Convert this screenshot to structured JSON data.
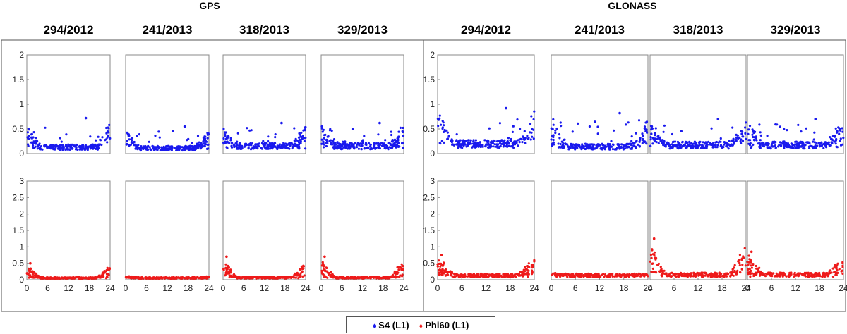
{
  "chart_data": {
    "type": "scatter",
    "systems": [
      {
        "title": "GPS",
        "dates": [
          "294/2012",
          "241/2013",
          "318/2013",
          "329/2013"
        ],
        "s4_baseline": [
          0.12,
          0.1,
          0.14,
          0.14
        ],
        "s4_peak": [
          0.72,
          0.55,
          0.62,
          0.62
        ],
        "phi_baseline": [
          0.05,
          0.05,
          0.06,
          0.06
        ],
        "phi_peak": [
          0.5,
          0.1,
          0.7,
          0.7
        ]
      },
      {
        "title": "GLONASS",
        "dates": [
          "294/2012",
          "241/2013",
          "318/2013",
          "329/2013"
        ],
        "s4_baseline": [
          0.18,
          0.13,
          0.16,
          0.16
        ],
        "s4_peak": [
          0.92,
          0.82,
          0.7,
          0.7
        ],
        "phi_baseline": [
          0.12,
          0.12,
          0.14,
          0.14
        ],
        "phi_peak": [
          0.75,
          0.2,
          1.25,
          0.85
        ]
      }
    ],
    "rows": [
      {
        "metric": "S4 (L1)",
        "ylim": [
          0,
          2
        ],
        "yticks": [
          "0",
          "0.5",
          "1",
          "1.5",
          "2"
        ],
        "color": "#1a1aee"
      },
      {
        "metric": "Phi60 (L1)",
        "ylim": [
          0,
          3
        ],
        "yticks": [
          "0",
          "0.5",
          "1",
          "1.5",
          "2",
          "2.5",
          "3"
        ],
        "color": "#ee1a1a"
      }
    ],
    "xlim": [
      0,
      24
    ],
    "xticks": [
      "0",
      "6",
      "12",
      "18",
      "24"
    ],
    "legend": [
      {
        "symbol": "♦",
        "label": "S4 (L1)",
        "color": "#1a1aee"
      },
      {
        "symbol": "♦",
        "label": "Phi60 (L1)",
        "color": "#ee1a1a"
      }
    ]
  }
}
